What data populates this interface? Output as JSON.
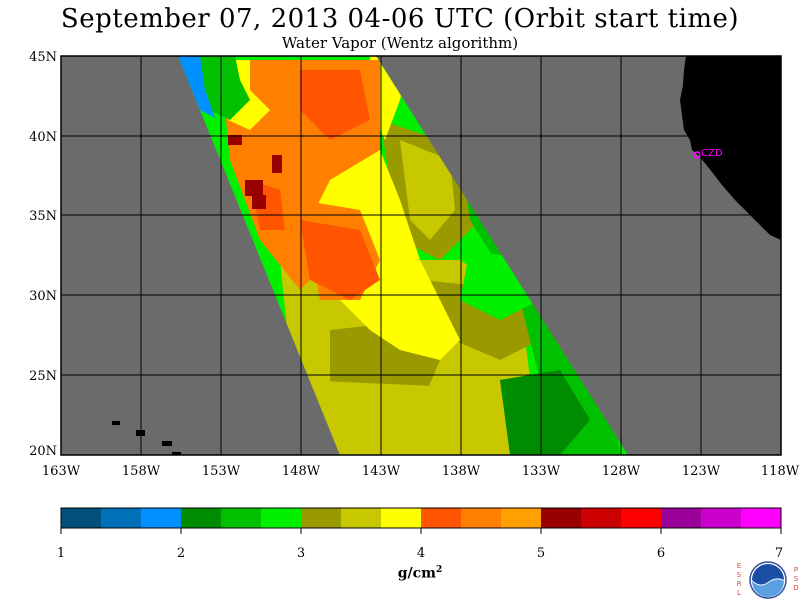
{
  "header": {
    "title": "September 07, 2013  04-06 UTC  (Orbit start time)",
    "subtitle": "Water Vapor (Wentz algorithm)"
  },
  "map": {
    "lat_range": [
      20,
      45
    ],
    "lon_range": [
      -163,
      -118
    ],
    "lat_labels": [
      "45N",
      "40N",
      "35N",
      "30N",
      "25N",
      "20N"
    ],
    "lon_labels": [
      "163W",
      "158W",
      "153W",
      "148W",
      "143W",
      "138W",
      "133W",
      "128W",
      "123W",
      "118W"
    ],
    "station_label": "CZD",
    "colors": {
      "no_data": "#6b6b6b",
      "land": "#000000",
      "grid": "#000000",
      "station": "#ff00ff"
    }
  },
  "colorbar": {
    "ticks": [
      "1",
      "2",
      "3",
      "4",
      "5",
      "6",
      "7"
    ],
    "units_base": "g/cm",
    "units_exp": "2",
    "colors": [
      "#00507a",
      "#0070b8",
      "#0090ff",
      "#008c00",
      "#00c000",
      "#00f000",
      "#999900",
      "#c8c800",
      "#ffff00",
      "#ff5500",
      "#ff8000",
      "#ff9f00",
      "#990000",
      "#cc0000",
      "#ff0000",
      "#990099",
      "#cc00cc",
      "#ff00ff"
    ]
  },
  "logo": {
    "left_letters": "ESRL",
    "right_letters": "PSD",
    "name": "noaa-logo"
  }
}
